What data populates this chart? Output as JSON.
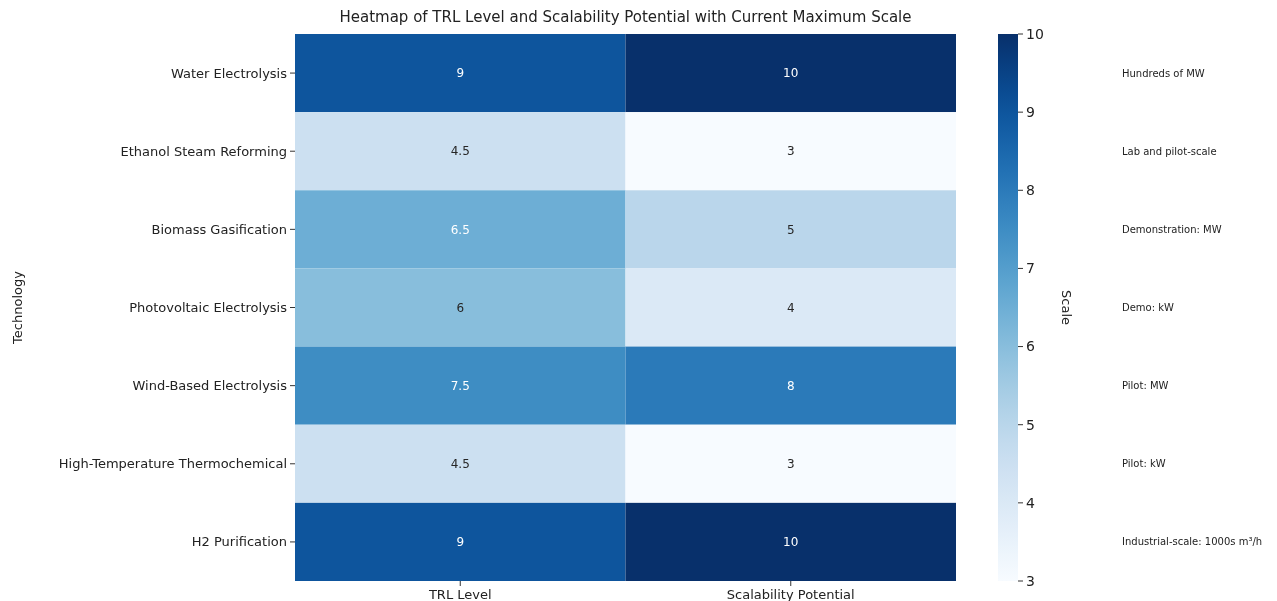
{
  "chart_data": {
    "type": "heatmap",
    "title": "Heatmap of TRL Level and Scalability Potential with Current Maximum Scale",
    "ylabel": "Technology",
    "clabel": "Scale",
    "categories": [
      "TRL Level",
      "Scalability Potential"
    ],
    "y_categories": [
      "Water Electrolysis",
      "Ethanol Steam Reforming",
      "Biomass Gasification",
      "Photovoltaic Electrolysis",
      "Wind-Based Electrolysis",
      "High-Temperature Thermochemical",
      "H2 Purification"
    ],
    "y2_categories": [
      "Hundreds of MW",
      "Lab and pilot-scale",
      "Demonstration: MW",
      "Demo: kW",
      "Pilot: MW",
      "Pilot: kW",
      "Industrial-scale: 1000s m³/h"
    ],
    "cells": [
      [
        9,
        10
      ],
      [
        4.5,
        3
      ],
      [
        6.5,
        5
      ],
      [
        6,
        4
      ],
      [
        7.5,
        8
      ],
      [
        4.5,
        3
      ],
      [
        9,
        10
      ]
    ],
    "data_labels": true,
    "clim": [
      3,
      10
    ],
    "cticks": [
      3,
      4,
      5,
      6,
      7,
      8,
      9,
      10
    ]
  }
}
